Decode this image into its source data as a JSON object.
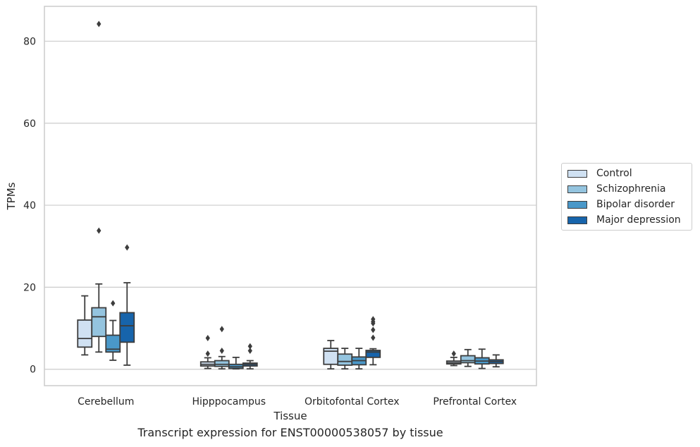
{
  "chart_data": {
    "type": "box",
    "xlabel": "Tissue",
    "ylabel": "TPMs",
    "ylim": [
      -4,
      88.5
    ],
    "yticks": [
      0,
      20,
      40,
      60,
      80
    ],
    "grid": "horizontal",
    "legend_position": "right",
    "categories": [
      "Cerebellum",
      "Hipppocampus",
      "Orbitofontal Cortex",
      "Prefrontal Cortex"
    ],
    "series": [
      {
        "name": "Control",
        "color": "#d0e1f2",
        "boxes": [
          {
            "whisker_low": 3.5,
            "q1": 5.4,
            "median": 7.5,
            "q3": 12.0,
            "whisker_high": 17.9,
            "outliers": []
          },
          {
            "whisker_low": 0.2,
            "q1": 0.8,
            "median": 1.2,
            "q3": 1.8,
            "whisker_high": 2.8,
            "outliers": [
              3.8,
              7.6
            ]
          },
          {
            "whisker_low": 0.1,
            "q1": 1.2,
            "median": 4.4,
            "q3": 5.1,
            "whisker_high": 7.0,
            "outliers": []
          },
          {
            "whisker_low": 0.9,
            "q1": 1.3,
            "median": 1.6,
            "q3": 2.0,
            "whisker_high": 2.9,
            "outliers": [
              3.8
            ]
          }
        ]
      },
      {
        "name": "Schizophrenia",
        "color": "#94c4df",
        "boxes": [
          {
            "whisker_low": 4.2,
            "q1": 8.0,
            "median": 12.8,
            "q3": 15.0,
            "whisker_high": 20.8,
            "outliers": [
              33.8,
              84.2
            ]
          },
          {
            "whisker_low": 0.1,
            "q1": 0.7,
            "median": 1.2,
            "q3": 2.1,
            "whisker_high": 3.1,
            "outliers": [
              4.5,
              9.8
            ]
          },
          {
            "whisker_low": 0.1,
            "q1": 1.0,
            "median": 1.9,
            "q3": 3.7,
            "whisker_high": 5.1,
            "outliers": []
          },
          {
            "whisker_low": 0.7,
            "q1": 1.6,
            "median": 2.1,
            "q3": 3.3,
            "whisker_high": 4.8,
            "outliers": []
          }
        ]
      },
      {
        "name": "Bipolar disorder",
        "color": "#4a98c9",
        "boxes": [
          {
            "whisker_low": 2.2,
            "q1": 4.2,
            "median": 4.9,
            "q3": 8.3,
            "whisker_high": 11.9,
            "outliers": [
              16.1
            ]
          },
          {
            "whisker_low": 0.1,
            "q1": 0.2,
            "median": 0.6,
            "q3": 1.2,
            "whisker_high": 2.9,
            "outliers": []
          },
          {
            "whisker_low": 0.1,
            "q1": 1.1,
            "median": 2.1,
            "q3": 3.0,
            "whisker_high": 5.1,
            "outliers": []
          },
          {
            "whisker_low": 0.2,
            "q1": 1.3,
            "median": 2.0,
            "q3": 2.8,
            "whisker_high": 4.9,
            "outliers": []
          }
        ]
      },
      {
        "name": "Major depression",
        "color": "#1764ab",
        "boxes": [
          {
            "whisker_low": 1.0,
            "q1": 6.6,
            "median": 10.6,
            "q3": 13.8,
            "whisker_high": 21.1,
            "outliers": [
              29.7
            ]
          },
          {
            "whisker_low": 0.1,
            "q1": 0.8,
            "median": 1.2,
            "q3": 1.5,
            "whisker_high": 2.1,
            "outliers": [
              4.5,
              5.6
            ]
          },
          {
            "whisker_low": 1.1,
            "q1": 2.9,
            "median": 4.2,
            "q3": 4.6,
            "whisker_high": 5.0,
            "outliers": [
              7.7,
              9.6,
              11.6
            ]
          },
          {
            "whisker_low": 0.6,
            "q1": 1.4,
            "median": 1.9,
            "q3": 2.3,
            "whisker_high": 3.5,
            "outliers": []
          }
        ]
      }
    ],
    "extra_outliers": [
      {
        "category_index": 2,
        "series_index": 0,
        "values": []
      },
      {
        "category_index": 2,
        "series_index": 3,
        "values": [
          11.2,
          12.2
        ]
      }
    ]
  },
  "caption": "Transcript expression for ENST00000538057 by tissue"
}
